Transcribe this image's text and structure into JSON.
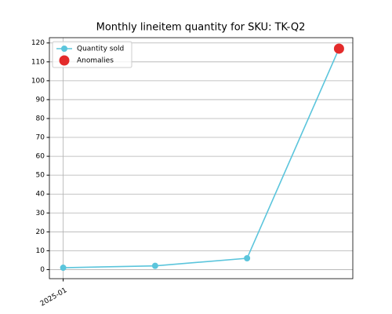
{
  "chart_data": {
    "type": "line",
    "title": "Monthly lineitem quantity for SKU: TK-Q2",
    "categories": [
      "2025-01",
      null,
      null,
      null
    ],
    "series": [
      {
        "name": "Quantity sold",
        "color": "#5bc5dc",
        "values": [
          1,
          2,
          6,
          117
        ]
      },
      {
        "name": "Anomalies",
        "color": "#e32b2b",
        "values": [
          null,
          null,
          null,
          117
        ],
        "marker_only": true
      }
    ],
    "ylim": [
      -4.8,
      122.8
    ],
    "yticks": [
      0,
      10,
      20,
      30,
      40,
      50,
      60,
      70,
      80,
      90,
      100,
      110,
      120
    ],
    "grid": true,
    "legend": "upper left"
  }
}
